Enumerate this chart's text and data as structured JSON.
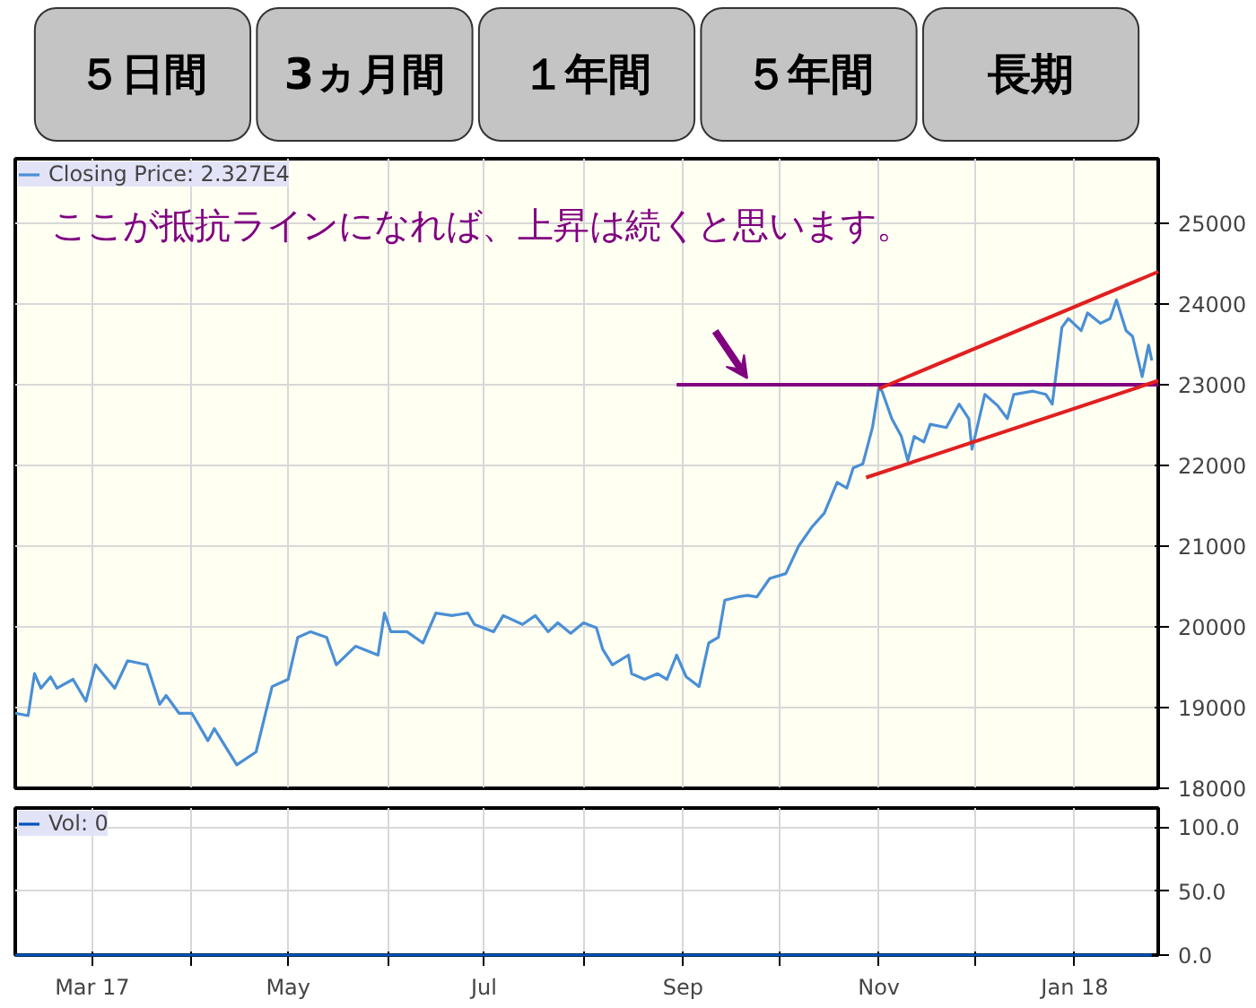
{
  "chart_data": [
    {
      "type": "other",
      "categories": [
        "５日間",
        "3ヵ月間",
        "１年間",
        "５年間",
        "長期"
      ],
      "colors": [
        "#c4c4c4",
        "#c4c4c4",
        "#c4c4c4",
        "#c4c4c4",
        "#c4c4c4"
      ]
    },
    {
      "type": "line",
      "annotations": [
        "ここが抵抗ラインになれば、上昇は続くと思います。"
      ],
      "xlim": [
        "2017-02-05",
        "2018-01-27"
      ],
      "xticks": [
        {
          "value": "2017-03-01",
          "label": null
        },
        {
          "value": "2017-04-01",
          "label": null
        },
        {
          "value": "2017-05-01",
          "label": null
        },
        {
          "value": "2017-06-01",
          "label": null
        },
        {
          "value": "2017-07-01",
          "label": null
        },
        {
          "value": "2017-08-01",
          "label": null
        },
        {
          "value": "2017-09-01",
          "label": null
        },
        {
          "value": "2017-10-01",
          "label": null
        },
        {
          "value": "2017-11-01",
          "label": null
        },
        {
          "value": "2017-12-01",
          "label": null
        },
        {
          "value": "2018-01-01",
          "label": null
        }
      ],
      "ylim": [
        18000,
        25800
      ],
      "yticks": [
        18000,
        19000,
        20000,
        21000,
        22000,
        23000,
        24000,
        25000
      ],
      "grid": true,
      "legend": "top left",
      "tick_labels": "y",
      "series": [
        {
          "name": "Closing Price: 2.327E4",
          "color": "#4a8fd4",
          "x": [
            "2017-02-05",
            "2017-02-09",
            "2017-02-11",
            "2017-02-13",
            "2017-02-16",
            "2017-02-18",
            "2017-02-23",
            "2017-02-27",
            "2017-03-02",
            "2017-03-08",
            "2017-03-12",
            "2017-03-18",
            "2017-03-22",
            "2017-03-24",
            "2017-03-28",
            "2017-04-01",
            "2017-04-06",
            "2017-04-08",
            "2017-04-15",
            "2017-04-21",
            "2017-04-26",
            "2017-05-01",
            "2017-05-04",
            "2017-05-08",
            "2017-05-13",
            "2017-05-16",
            "2017-05-22",
            "2017-05-29",
            "2017-05-31",
            "2017-06-02",
            "2017-06-07",
            "2017-06-12",
            "2017-06-16",
            "2017-06-21",
            "2017-06-26",
            "2017-06-28",
            "2017-07-04",
            "2017-07-07",
            "2017-07-13",
            "2017-07-17",
            "2017-07-21",
            "2017-07-24",
            "2017-07-28",
            "2017-08-01",
            "2017-08-05",
            "2017-08-07",
            "2017-08-10",
            "2017-08-15",
            "2017-08-16",
            "2017-08-20",
            "2017-08-24",
            "2017-08-27",
            "2017-08-30",
            "2017-09-02",
            "2017-09-06",
            "2017-09-09",
            "2017-09-12",
            "2017-09-14",
            "2017-09-18",
            "2017-09-21",
            "2017-09-24",
            "2017-09-28",
            "2017-10-03",
            "2017-10-07",
            "2017-10-11",
            "2017-10-15",
            "2017-10-19",
            "2017-10-22",
            "2017-10-24",
            "2017-10-27",
            "2017-10-30",
            "2017-11-01",
            "2017-11-02",
            "2017-11-05",
            "2017-11-08",
            "2017-11-10",
            "2017-11-12",
            "2017-11-15",
            "2017-11-17",
            "2017-11-22",
            "2017-11-26",
            "2017-11-29",
            "2017-11-30",
            "2017-12-04",
            "2017-12-08",
            "2017-12-11",
            "2017-12-13",
            "2017-12-19",
            "2017-12-23",
            "2017-12-25",
            "2017-12-28",
            "2017-12-30",
            "2018-01-03",
            "2018-01-05",
            "2018-01-09",
            "2018-01-12",
            "2018-01-14",
            "2018-01-17",
            "2018-01-19",
            "2018-01-22",
            "2018-01-24",
            "2018-01-25"
          ],
          "values": [
            18930,
            18900,
            19420,
            19240,
            19380,
            19240,
            19350,
            19080,
            19530,
            19240,
            19580,
            19530,
            19040,
            19150,
            18930,
            18930,
            18590,
            18740,
            18290,
            18450,
            19260,
            19350,
            19870,
            19940,
            19870,
            19530,
            19760,
            19650,
            20170,
            19940,
            19940,
            19800,
            20170,
            20140,
            20170,
            20030,
            19940,
            20140,
            20030,
            20140,
            19940,
            20050,
            19920,
            20050,
            19990,
            19720,
            19530,
            19650,
            19420,
            19350,
            19420,
            19350,
            19650,
            19380,
            19260,
            19800,
            19870,
            20330,
            20370,
            20390,
            20370,
            20600,
            20660,
            21000,
            21230,
            21410,
            21790,
            21720,
            21970,
            22020,
            22470,
            22970,
            22920,
            22580,
            22360,
            22060,
            22360,
            22290,
            22510,
            22470,
            22760,
            22580,
            22200,
            22880,
            22740,
            22580,
            22880,
            22920,
            22880,
            22760,
            23710,
            23820,
            23670,
            23890,
            23760,
            23820,
            24050,
            23670,
            23600,
            23100,
            23490,
            23300
          ]
        },
        {
          "color": "#800080",
          "x": [
            "2017-08-30",
            "2018-01-27"
          ],
          "values": [
            23000,
            23000
          ]
        },
        {
          "color": "#e02020",
          "x": [
            "2017-11-01",
            "2018-01-27"
          ],
          "values": [
            22950,
            24400
          ]
        },
        {
          "color": "#e02020",
          "x": [
            "2017-10-28",
            "2018-01-27"
          ],
          "values": [
            21850,
            23050
          ]
        }
      ]
    },
    {
      "type": "line",
      "xlim": [
        "2017-02-05",
        "2018-01-27"
      ],
      "xticks": [
        {
          "value": "2017-03-01",
          "label": "Mar 17"
        },
        {
          "value": "2017-04-01",
          "label": null
        },
        {
          "value": "2017-05-01",
          "label": "May"
        },
        {
          "value": "2017-06-01",
          "label": null
        },
        {
          "value": "2017-07-01",
          "label": "Jul"
        },
        {
          "value": "2017-08-01",
          "label": null
        },
        {
          "value": "2017-09-01",
          "label": "Sep"
        },
        {
          "value": "2017-10-01",
          "label": null
        },
        {
          "value": "2017-11-01",
          "label": "Nov"
        },
        {
          "value": "2017-12-01",
          "label": null
        },
        {
          "value": "2018-01-01",
          "label": "Jan 18"
        }
      ],
      "ylim": [
        0,
        115
      ],
      "yticks": [
        {
          "value": 0,
          "label": "0.0"
        },
        {
          "value": 50,
          "label": "50.0"
        },
        {
          "value": 100,
          "label": "100.0"
        }
      ],
      "grid": true,
      "legend": "top left",
      "series": [
        {
          "name": "Vol: 0",
          "color": "#0055bb",
          "x": [
            "2017-02-05",
            "2018-01-25"
          ],
          "values": [
            0,
            0
          ]
        }
      ]
    }
  ]
}
